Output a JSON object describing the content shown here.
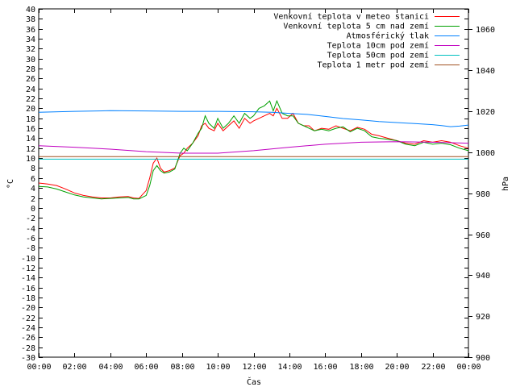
{
  "chart_data": {
    "type": "line",
    "xlabel": "Čas",
    "ylabel": "°C",
    "y2label": "hPa",
    "x_tick_labels": [
      "00:00",
      "02:00",
      "04:00",
      "06:00",
      "08:00",
      "10:00",
      "12:00",
      "14:00",
      "16:00",
      "18:00",
      "20:00",
      "22:00",
      "00:00"
    ],
    "xlim": [
      0,
      24
    ],
    "ylim": [
      -30,
      40
    ],
    "y_ticks": [
      40,
      38,
      36,
      34,
      32,
      30,
      28,
      26,
      24,
      22,
      20,
      18,
      16,
      14,
      12,
      10,
      8,
      6,
      4,
      2,
      0,
      -2,
      -4,
      -6,
      -8,
      -10,
      -12,
      -14,
      -16,
      -18,
      -20,
      -22,
      -24,
      -26,
      -28,
      -30
    ],
    "y2lim": [
      900,
      1070
    ],
    "y2_ticks": [
      1060,
      1040,
      1020,
      1000,
      980,
      960,
      940,
      920,
      900
    ],
    "grid": false,
    "legend_position": "top-right",
    "series": [
      {
        "name": "Venkovní teplota v meteo stanici",
        "color": "#ff0000",
        "axis": "y",
        "x": [
          0,
          0.5,
          1,
          1.5,
          2,
          2.5,
          3,
          3.5,
          4,
          4.5,
          5,
          5.3,
          5.6,
          6,
          6.2,
          6.4,
          6.6,
          6.8,
          7,
          7.3,
          7.6,
          7.9,
          8.1,
          8.3,
          8.6,
          8.9,
          9.1,
          9.3,
          9.5,
          9.8,
          10,
          10.3,
          10.6,
          10.9,
          11.2,
          11.5,
          11.8,
          12,
          12.3,
          12.6,
          12.9,
          13.1,
          13.3,
          13.6,
          13.9,
          14.2,
          14.5,
          14.8,
          15.1,
          15.4,
          15.8,
          16.2,
          16.6,
          17,
          17.4,
          17.8,
          18.2,
          18.6,
          19,
          19.5,
          20,
          20.5,
          21,
          21.5,
          22,
          22.5,
          23,
          23.5,
          24
        ],
        "y": [
          5,
          4.8,
          4.5,
          3.8,
          3,
          2.5,
          2.2,
          2,
          2,
          2.2,
          2.3,
          2,
          1.9,
          3.5,
          6,
          9,
          10,
          8,
          7.2,
          7.5,
          8,
          10.5,
          11,
          12,
          13,
          14.5,
          16.5,
          17,
          16,
          15.5,
          17,
          15.5,
          16.5,
          17.5,
          16,
          18,
          17,
          17.5,
          18,
          18.5,
          19,
          18.5,
          20,
          18,
          18,
          19,
          17,
          16.5,
          16.5,
          15.5,
          16,
          15.8,
          16.5,
          16,
          15.5,
          16.2,
          15.8,
          14.8,
          14.5,
          14,
          13.5,
          13,
          12.8,
          13.5,
          13.2,
          13.5,
          13.2,
          12.5,
          12
        ]
      },
      {
        "name": "Venkovní teplota 5 cm nad zemí",
        "color": "#00a000",
        "axis": "y",
        "x": [
          0,
          0.5,
          1,
          1.5,
          2,
          2.5,
          3,
          3.5,
          4,
          4.5,
          5,
          5.3,
          5.6,
          6,
          6.2,
          6.4,
          6.6,
          6.8,
          7,
          7.3,
          7.6,
          7.9,
          8.1,
          8.3,
          8.6,
          8.9,
          9.1,
          9.3,
          9.5,
          9.8,
          10,
          10.3,
          10.6,
          10.9,
          11.2,
          11.5,
          11.8,
          12,
          12.3,
          12.6,
          12.9,
          13.1,
          13.3,
          13.6,
          13.9,
          14.2,
          14.5,
          14.8,
          15.1,
          15.4,
          15.8,
          16.2,
          16.6,
          17,
          17.4,
          17.8,
          18.2,
          18.6,
          19,
          19.5,
          20,
          20.5,
          21,
          21.5,
          22,
          22.5,
          23,
          23.5,
          24
        ],
        "y": [
          4.3,
          4.2,
          3.8,
          3.2,
          2.6,
          2.2,
          2,
          1.8,
          1.9,
          2,
          2.1,
          1.8,
          1.8,
          2.5,
          4.5,
          7.5,
          8.5,
          7.5,
          7,
          7.2,
          7.8,
          11,
          12,
          11.5,
          13,
          15,
          16,
          18.5,
          17,
          16,
          18,
          16,
          17,
          18.5,
          17,
          19,
          18,
          18.5,
          20,
          20.5,
          21.5,
          19.5,
          21.5,
          19,
          18.5,
          18.5,
          17,
          16.5,
          16,
          15.5,
          15.8,
          15.5,
          16,
          16.3,
          15.3,
          16,
          15.5,
          14.3,
          14,
          13.8,
          13.5,
          12.8,
          12.5,
          13.2,
          12.8,
          13,
          12.7,
          12,
          11.5
        ]
      },
      {
        "name": "Atmosférický tlak",
        "color": "#0080ff",
        "axis": "y2",
        "x": [
          0,
          2,
          4,
          6,
          8,
          10,
          12,
          13,
          14,
          15,
          16,
          17,
          18,
          19,
          20,
          21,
          22,
          22.5,
          23,
          23.5,
          24
        ],
        "y": [
          1019.5,
          1020,
          1020.3,
          1020.2,
          1020,
          1020,
          1019.8,
          1019.5,
          1019,
          1018.5,
          1017.5,
          1016.5,
          1015.8,
          1015,
          1014.5,
          1014,
          1013.5,
          1013,
          1012.5,
          1012.8,
          1013.3
        ]
      },
      {
        "name": "Teplota 10cm pod zemí",
        "color": "#c000c0",
        "axis": "y",
        "x": [
          0,
          2,
          4,
          6,
          8,
          10,
          12,
          14,
          16,
          18,
          20,
          22,
          24
        ],
        "y": [
          12.5,
          12.2,
          11.8,
          11.3,
          11,
          11,
          11.5,
          12.2,
          12.8,
          13.2,
          13.3,
          13.2,
          13
        ]
      },
      {
        "name": "Teplota 50cm pod zemí",
        "color": "#00c0c0",
        "axis": "y",
        "x": [
          0,
          24
        ],
        "y": [
          9.8,
          9.8
        ]
      },
      {
        "name": "Teplota 1 metr pod zemí",
        "color": "#a05020",
        "axis": "y",
        "x": [
          0,
          24
        ],
        "y": [
          10.3,
          10.3
        ]
      }
    ]
  }
}
